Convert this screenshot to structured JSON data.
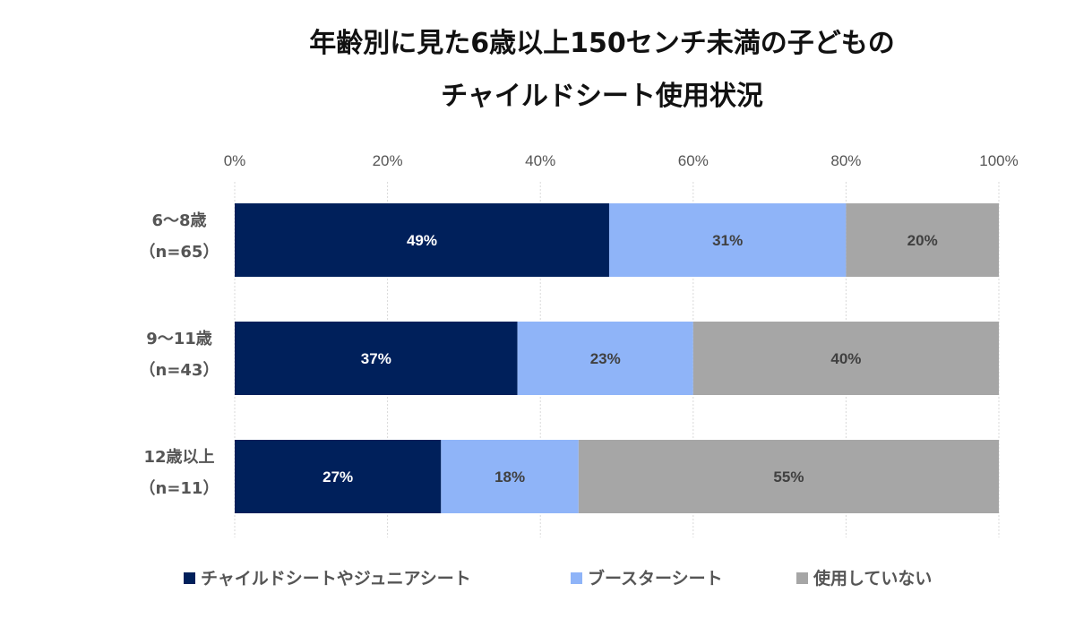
{
  "chart_data": {
    "type": "bar",
    "orientation": "horizontal",
    "stacked": true,
    "title_lines": [
      "年齢別に見た6歳以上150センチ未満の子どもの",
      "チャイルドシート使用状況"
    ],
    "categories": [
      {
        "label_lines": [
          "6～8歳",
          "（n=65）"
        ]
      },
      {
        "label_lines": [
          "9～11歳",
          "（n=43）"
        ]
      },
      {
        "label_lines": [
          "12歳以上",
          "（n=11）"
        ]
      }
    ],
    "series": [
      {
        "name": "チャイルドシートやジュニアシート",
        "color": "#00205B",
        "label_color": "#FFFFFF",
        "values": [
          49,
          37,
          27
        ],
        "labels": [
          "49%",
          "37%",
          "27%"
        ]
      },
      {
        "name": "ブースターシート",
        "color": "#8FB4F8",
        "label_color": "#404040",
        "values": [
          31,
          23,
          18
        ],
        "labels": [
          "31%",
          "23%",
          "18%"
        ]
      },
      {
        "name": "使用していない",
        "color": "#A6A6A6",
        "label_color": "#404040",
        "values": [
          20,
          40,
          55
        ],
        "labels": [
          "20%",
          "40%",
          "55%"
        ]
      }
    ],
    "xlim": [
      0,
      100
    ],
    "x_ticks": [
      0,
      20,
      40,
      60,
      80,
      100
    ],
    "x_tick_labels": [
      "0%",
      "20%",
      "40%",
      "60%",
      "80%",
      "100%"
    ],
    "x_axis_position": "top",
    "grid": true,
    "legend_position": "bottom"
  }
}
